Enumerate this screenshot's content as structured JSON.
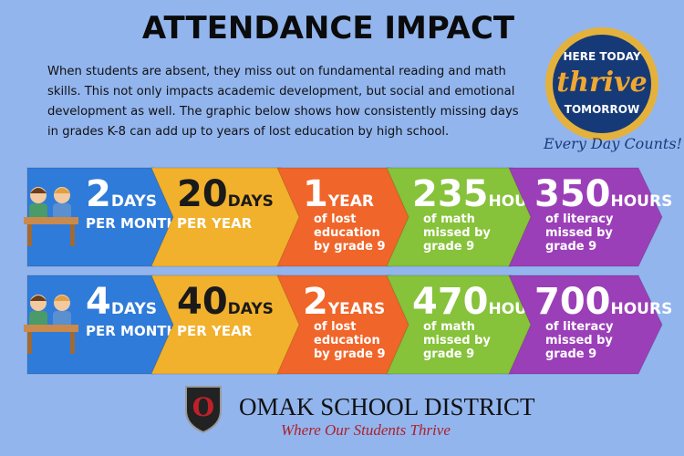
{
  "header": {
    "title": "ATTENDANCE IMPACT",
    "intro": [
      "When students are absent, they miss out on fundamental reading and math",
      "skills. This not only impacts academic development, but social and emotional",
      "development as well. The graphic below shows how consistently missing days",
      "in grades K-8 can add up to years of lost education by high school."
    ]
  },
  "badge": {
    "top": "HERE TODAY",
    "middle": "thrive",
    "bottom": "TOMORROW",
    "tagline": "Every Day Counts!"
  },
  "rows": [
    {
      "arrows": [
        {
          "number": 2,
          "unit": "DAYS",
          "lines": [
            "PER MONTH"
          ]
        },
        {
          "number": 20,
          "unit": "DAYS",
          "lines": [
            "PER YEAR"
          ]
        },
        {
          "number": 1,
          "unit": "YEAR",
          "lines": [
            "of lost",
            "education",
            "by grade 9"
          ]
        },
        {
          "number": 235,
          "unit": "HOURS",
          "lines": [
            "of math",
            "missed by",
            "grade 9"
          ]
        },
        {
          "number": 350,
          "unit": "HOURS",
          "lines": [
            "of literacy",
            "missed by",
            "grade 9"
          ]
        }
      ]
    },
    {
      "arrows": [
        {
          "number": 4,
          "unit": "DAYS",
          "lines": [
            "PER MONTH"
          ]
        },
        {
          "number": 40,
          "unit": "DAYS",
          "lines": [
            "PER YEAR"
          ]
        },
        {
          "number": 2,
          "unit": "YEARS",
          "lines": [
            "of lost",
            "education",
            "by grade 9"
          ]
        },
        {
          "number": 470,
          "unit": "HOURS",
          "lines": [
            "of math",
            "missed by",
            "grade 9"
          ]
        },
        {
          "number": 700,
          "unit": "HOURS",
          "lines": [
            "of literacy",
            "missed by",
            "grade 9"
          ]
        }
      ]
    }
  ],
  "footer": {
    "logo": "O",
    "name": "OMAK SCHOOL DISTRICT",
    "slogan": "Where Our Students Thrive"
  }
}
